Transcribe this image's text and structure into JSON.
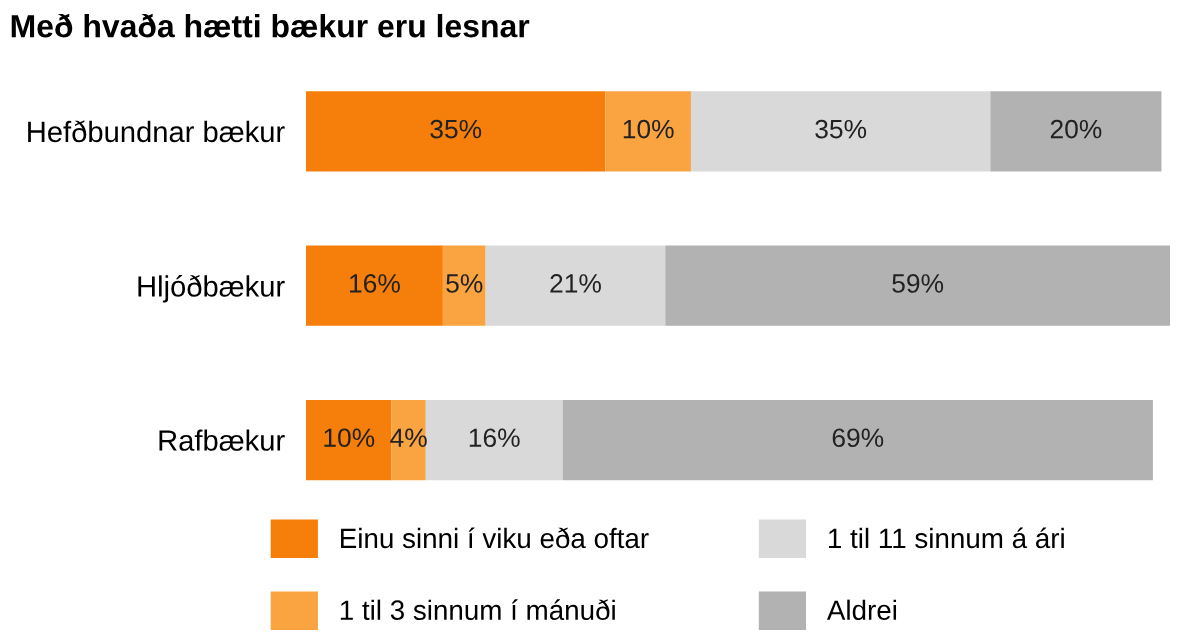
{
  "chart_data": {
    "type": "bar",
    "orientation": "horizontal",
    "stacked": true,
    "title": "Með hvaða hætti bækur eru lesnar",
    "categories": [
      "Hefðbundnar bækur",
      "Hljóðbækur",
      "Rafbækur"
    ],
    "series": [
      {
        "name": "Einu sinni í viku eða oftar",
        "color": "#f57f0a",
        "values": [
          35,
          16,
          10
        ],
        "value_labels": [
          "35%",
          "16%",
          "10%"
        ]
      },
      {
        "name": "1 til 3 sinnum í mánuði",
        "color": "#f9a440",
        "values": [
          10,
          5,
          4
        ],
        "value_labels": [
          "10%",
          "5%",
          "4%"
        ]
      },
      {
        "name": "1 til 11 sinnum á ári",
        "color": "#d9d9d9",
        "values": [
          35,
          21,
          16
        ],
        "value_labels": [
          "35%",
          "21%",
          "16%"
        ]
      },
      {
        "name": "Aldrei",
        "color": "#b2b2b2",
        "values": [
          20,
          59,
          69
        ],
        "value_labels": [
          "20%",
          "59%",
          "69%"
        ]
      }
    ],
    "tick_labels": "y",
    "grid": false,
    "legend": "bottom"
  }
}
